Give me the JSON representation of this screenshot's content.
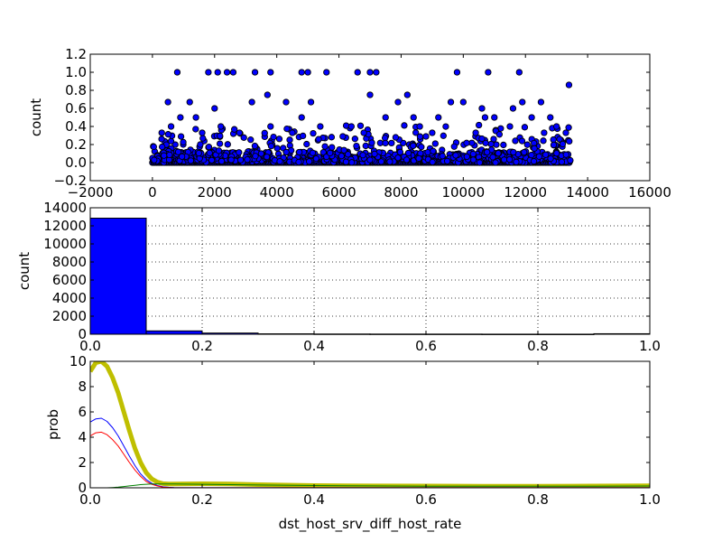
{
  "xlabel_bottom": "dst_host_srv_diff_host_rate",
  "chart_data": [
    {
      "type": "scatter",
      "ylabel": "count",
      "xlim": [
        -2000,
        16000
      ],
      "ylim": [
        -0.2,
        1.2
      ],
      "xticks": [
        -2000,
        0,
        2000,
        4000,
        6000,
        8000,
        10000,
        12000,
        14000,
        16000
      ],
      "yticks": [
        -0.2,
        0.0,
        0.2,
        0.4,
        0.6,
        0.8,
        1.0,
        1.2
      ],
      "xtick_labels": [
        "−2000",
        "0",
        "2000",
        "4000",
        "6000",
        "8000",
        "10000",
        "12000",
        "14000",
        "16000"
      ],
      "ytick_labels": [
        "−0.2",
        "0.0",
        "0.2",
        "0.4",
        "0.6",
        "0.8",
        "1.0",
        "1.2"
      ],
      "grid": false,
      "color": "#0000ff",
      "n_samples": 13449,
      "highlighted_points": [
        [
          800,
          1.0
        ],
        [
          1800,
          1.0
        ],
        [
          2100,
          1.0
        ],
        [
          2400,
          1.0
        ],
        [
          2600,
          1.0
        ],
        [
          3300,
          1.0
        ],
        [
          3800,
          1.0
        ],
        [
          4800,
          1.0
        ],
        [
          5000,
          1.0
        ],
        [
          5600,
          1.0
        ],
        [
          6600,
          1.0
        ],
        [
          7000,
          1.0
        ],
        [
          7200,
          1.0
        ],
        [
          9800,
          1.0
        ],
        [
          10800,
          1.0
        ],
        [
          11800,
          1.0
        ],
        [
          3700,
          0.75
        ],
        [
          7000,
          0.75
        ],
        [
          8200,
          0.75
        ],
        [
          13400,
          0.86
        ],
        [
          500,
          0.67
        ],
        [
          1200,
          0.67
        ],
        [
          3200,
          0.67
        ],
        [
          4300,
          0.67
        ],
        [
          5100,
          0.67
        ],
        [
          7900,
          0.67
        ],
        [
          9600,
          0.67
        ],
        [
          10000,
          0.67
        ],
        [
          11900,
          0.67
        ],
        [
          12500,
          0.67
        ],
        [
          2000,
          0.6
        ],
        [
          10600,
          0.6
        ],
        [
          11600,
          0.6
        ],
        [
          900,
          0.5
        ],
        [
          1400,
          0.5
        ],
        [
          4800,
          0.5
        ],
        [
          7500,
          0.5
        ],
        [
          8400,
          0.5
        ],
        [
          9200,
          0.5
        ],
        [
          10700,
          0.5
        ],
        [
          11000,
          0.5
        ],
        [
          12200,
          0.5
        ],
        [
          12800,
          0.5
        ],
        [
          600,
          0.4
        ],
        [
          2200,
          0.4
        ],
        [
          3800,
          0.4
        ],
        [
          5400,
          0.4
        ],
        [
          6400,
          0.4
        ],
        [
          8600,
          0.4
        ],
        [
          11500,
          0.4
        ],
        [
          13000,
          0.4
        ],
        [
          300,
          0.33
        ],
        [
          1600,
          0.33
        ],
        [
          2800,
          0.33
        ],
        [
          4500,
          0.33
        ],
        [
          6800,
          0.33
        ],
        [
          9000,
          0.33
        ],
        [
          10400,
          0.33
        ],
        [
          12600,
          0.33
        ],
        [
          13300,
          0.33
        ]
      ]
    },
    {
      "type": "bar",
      "ylabel": "count",
      "xlim": [
        0.0,
        1.0
      ],
      "ylim": [
        0,
        14000
      ],
      "xticks": [
        0.0,
        0.2,
        0.4,
        0.6,
        0.8,
        1.0
      ],
      "yticks": [
        0,
        2000,
        4000,
        6000,
        8000,
        10000,
        12000,
        14000
      ],
      "xtick_labels": [
        "0.0",
        "0.2",
        "0.4",
        "0.6",
        "0.8",
        "1.0"
      ],
      "ytick_labels": [
        "0",
        "2000",
        "4000",
        "6000",
        "8000",
        "10000",
        "12000",
        "14000"
      ],
      "grid": true,
      "color": "#0000ff",
      "bin_edges": [
        0.0,
        0.1,
        0.2,
        0.3,
        0.4,
        0.5,
        0.6,
        0.7,
        0.8,
        0.9,
        1.0
      ],
      "values": [
        12850,
        370,
        130,
        45,
        25,
        18,
        15,
        8,
        6,
        55
      ]
    },
    {
      "type": "line",
      "ylabel": "prob",
      "xlim": [
        0.0,
        1.0
      ],
      "ylim": [
        0,
        10
      ],
      "xticks": [
        0.0,
        0.2,
        0.4,
        0.6,
        0.8,
        1.0
      ],
      "yticks": [
        0,
        2,
        4,
        6,
        8,
        10
      ],
      "xtick_labels": [
        "0.0",
        "0.2",
        "0.4",
        "0.6",
        "0.8",
        "1.0"
      ],
      "ytick_labels": [
        "0",
        "2",
        "4",
        "6",
        "8",
        "10"
      ],
      "grid": false,
      "x": [
        0.0,
        0.01,
        0.02,
        0.03,
        0.04,
        0.05,
        0.06,
        0.07,
        0.08,
        0.09,
        0.1,
        0.11,
        0.12,
        0.13,
        0.14,
        0.15,
        0.2,
        0.25,
        0.3,
        0.4,
        0.5,
        0.6,
        0.7,
        0.8,
        0.9,
        1.0
      ],
      "series": [
        {
          "color": "#bfbf00",
          "width": 5,
          "values": [
            9.2,
            9.9,
            10.0,
            9.6,
            8.7,
            7.5,
            6.0,
            4.5,
            3.1,
            2.0,
            1.2,
            0.7,
            0.45,
            0.33,
            0.3,
            0.3,
            0.32,
            0.3,
            0.25,
            0.18,
            0.15,
            0.14,
            0.13,
            0.13,
            0.14,
            0.16
          ]
        },
        {
          "color": "#0000ff",
          "width": 1,
          "values": [
            5.2,
            5.45,
            5.5,
            5.25,
            4.75,
            4.1,
            3.3,
            2.5,
            1.75,
            1.1,
            0.65,
            0.35,
            0.18,
            0.08,
            0.04,
            0.02,
            0.01,
            0.01,
            0.01,
            0.01,
            0.01,
            0.01,
            0.01,
            0.01,
            0.01,
            0.01
          ]
        },
        {
          "color": "#ff0000",
          "width": 1,
          "values": [
            4.1,
            4.35,
            4.4,
            4.2,
            3.8,
            3.3,
            2.65,
            2.0,
            1.4,
            0.9,
            0.5,
            0.27,
            0.14,
            0.06,
            0.03,
            0.01,
            0.01,
            0.01,
            0.01,
            0.01,
            0.01,
            0.01,
            0.01,
            0.01,
            0.01,
            0.01
          ]
        },
        {
          "color": "#008000",
          "width": 1,
          "values": [
            0.0,
            0.0,
            0.0,
            0.0,
            0.02,
            0.05,
            0.1,
            0.15,
            0.2,
            0.25,
            0.28,
            0.3,
            0.31,
            0.31,
            0.31,
            0.3,
            0.28,
            0.25,
            0.22,
            0.18,
            0.15,
            0.13,
            0.12,
            0.12,
            0.13,
            0.14
          ]
        }
      ]
    }
  ]
}
